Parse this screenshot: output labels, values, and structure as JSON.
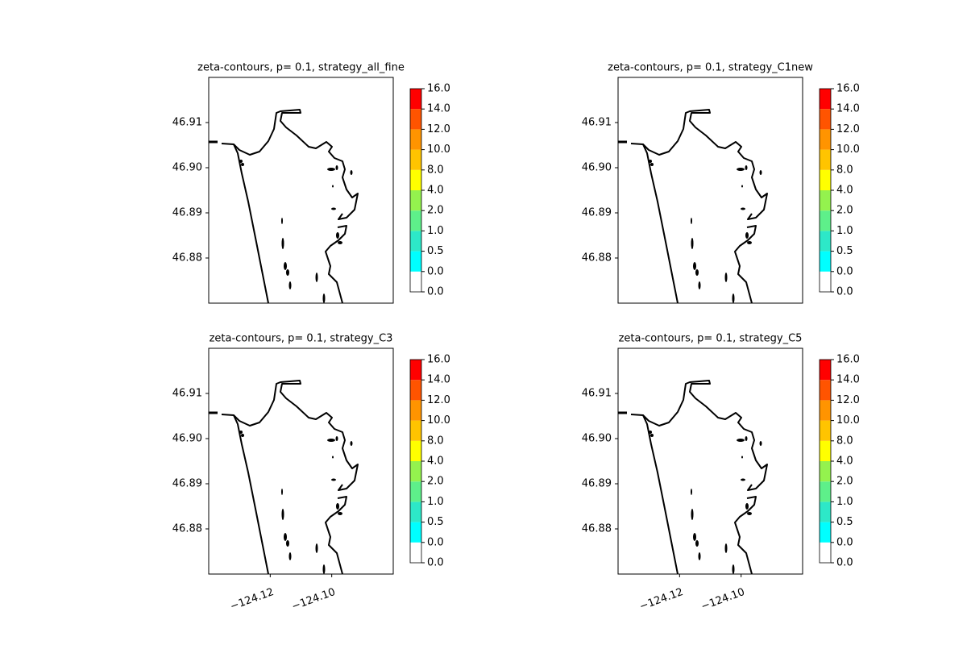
{
  "chart_data": [
    {
      "type": "map",
      "title": "zeta-contours, p= 0.1, strategy_all_fine",
      "xlim": [
        -124.14,
        -124.08
      ],
      "ylim": [
        46.87,
        46.92
      ],
      "yticks": [
        46.88,
        46.89,
        {
          "value": 46.9,
          "label": "46.90"
        },
        46.91
      ],
      "colorbar": {
        "ticks": [
          {
            "value": 0,
            "label": "0.0"
          },
          {
            "value": 0,
            "label": "0.0"
          },
          0.5,
          {
            "value": 1,
            "label": "1.0"
          },
          {
            "value": 2,
            "label": "2.0"
          },
          {
            "value": 4,
            "label": "4.0"
          },
          {
            "value": 8,
            "label": "8.0"
          },
          {
            "value": 10,
            "label": "10.0"
          },
          {
            "value": 12,
            "label": "12.0"
          },
          {
            "value": 14,
            "label": "14.0"
          },
          {
            "value": 16,
            "label": "16.0"
          }
        ],
        "colors": [
          "#ffffff",
          "#00ffff",
          "#2de8c8",
          "#5ef08a",
          "#94f24e",
          "#ffff00",
          "#ffc400",
          "#ff9400",
          "#ff5400",
          "#ff0000"
        ]
      }
    },
    {
      "type": "map",
      "title": "zeta-contours, p= 0.1, strategy_C1new",
      "xlim": [
        -124.14,
        -124.08
      ],
      "ylim": [
        46.87,
        46.92
      ],
      "yticks": [
        46.88,
        46.89,
        {
          "value": 46.9,
          "label": "46.90"
        },
        46.91
      ],
      "colorbar": {
        "ticks": [
          {
            "value": 0,
            "label": "0.0"
          },
          {
            "value": 0,
            "label": "0.0"
          },
          0.5,
          {
            "value": 1,
            "label": "1.0"
          },
          {
            "value": 2,
            "label": "2.0"
          },
          {
            "value": 4,
            "label": "4.0"
          },
          {
            "value": 8,
            "label": "8.0"
          },
          {
            "value": 10,
            "label": "10.0"
          },
          {
            "value": 12,
            "label": "12.0"
          },
          {
            "value": 14,
            "label": "14.0"
          },
          {
            "value": 16,
            "label": "16.0"
          }
        ],
        "colors": [
          "#ffffff",
          "#00ffff",
          "#2de8c8",
          "#5ef08a",
          "#94f24e",
          "#ffff00",
          "#ffc400",
          "#ff9400",
          "#ff5400",
          "#ff0000"
        ]
      }
    },
    {
      "type": "map",
      "title": "zeta-contours, p= 0.1, strategy_C3",
      "xlim": [
        -124.14,
        -124.08
      ],
      "ylim": [
        46.87,
        46.92
      ],
      "xticks": [
        {
          "value": -124.12,
          "label": "−124.12"
        },
        {
          "value": -124.1,
          "label": "−124.10"
        }
      ],
      "yticks": [
        46.88,
        46.89,
        {
          "value": 46.9,
          "label": "46.90"
        },
        46.91
      ],
      "colorbar": {
        "ticks": [
          {
            "value": 0,
            "label": "0.0"
          },
          {
            "value": 0,
            "label": "0.0"
          },
          0.5,
          {
            "value": 1,
            "label": "1.0"
          },
          {
            "value": 2,
            "label": "2.0"
          },
          {
            "value": 4,
            "label": "4.0"
          },
          {
            "value": 8,
            "label": "8.0"
          },
          {
            "value": 10,
            "label": "10.0"
          },
          {
            "value": 12,
            "label": "12.0"
          },
          {
            "value": 14,
            "label": "14.0"
          },
          {
            "value": 16,
            "label": "16.0"
          }
        ],
        "colors": [
          "#ffffff",
          "#00ffff",
          "#2de8c8",
          "#5ef08a",
          "#94f24e",
          "#ffff00",
          "#ffc400",
          "#ff9400",
          "#ff5400",
          "#ff0000"
        ]
      }
    },
    {
      "type": "map",
      "title": "zeta-contours, p= 0.1, strategy_C5",
      "xlim": [
        -124.14,
        -124.08
      ],
      "ylim": [
        46.87,
        46.92
      ],
      "xticks": [
        {
          "value": -124.12,
          "label": "−124.12"
        },
        {
          "value": -124.1,
          "label": "−124.10"
        }
      ],
      "yticks": [
        46.88,
        46.89,
        {
          "value": 46.9,
          "label": "46.90"
        },
        46.91
      ],
      "colorbar": {
        "ticks": [
          {
            "value": 0,
            "label": "0.0"
          },
          {
            "value": 0,
            "label": "0.0"
          },
          0.5,
          {
            "value": 1,
            "label": "1.0"
          },
          {
            "value": 2,
            "label": "2.0"
          },
          {
            "value": 4,
            "label": "4.0"
          },
          {
            "value": 8,
            "label": "8.0"
          },
          {
            "value": 10,
            "label": "10.0"
          },
          {
            "value": 12,
            "label": "12.0"
          },
          {
            "value": 14,
            "label": "14.0"
          },
          {
            "value": 16,
            "label": "16.0"
          }
        ],
        "colors": [
          "#ffffff",
          "#00ffff",
          "#2de8c8",
          "#5ef08a",
          "#94f24e",
          "#ffff00",
          "#ffc400",
          "#ff9400",
          "#ff5400",
          "#ff0000"
        ]
      }
    }
  ]
}
